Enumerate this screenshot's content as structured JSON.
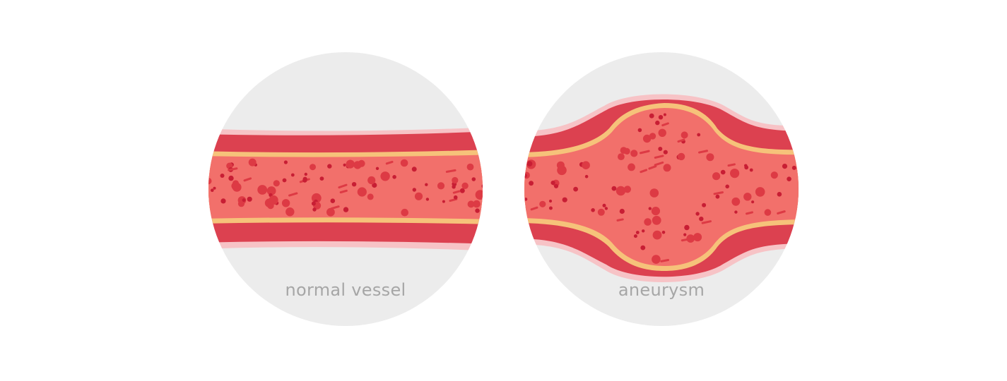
{
  "panels": [
    {
      "id": "normal",
      "caption": "normal vessel"
    },
    {
      "id": "aneurysm",
      "caption": "aneurysm"
    }
  ],
  "colors": {
    "background": "#ffffff",
    "circle": "#ececec",
    "outer_wall": "#f7c3c6",
    "vessel_wall": "#dc4150",
    "intima": "#f6c27a",
    "blood": "#f2706b",
    "cell_dark": "#c81e34",
    "cell_mid": "#dd3a44",
    "caption_text": "#a6a6a6"
  }
}
